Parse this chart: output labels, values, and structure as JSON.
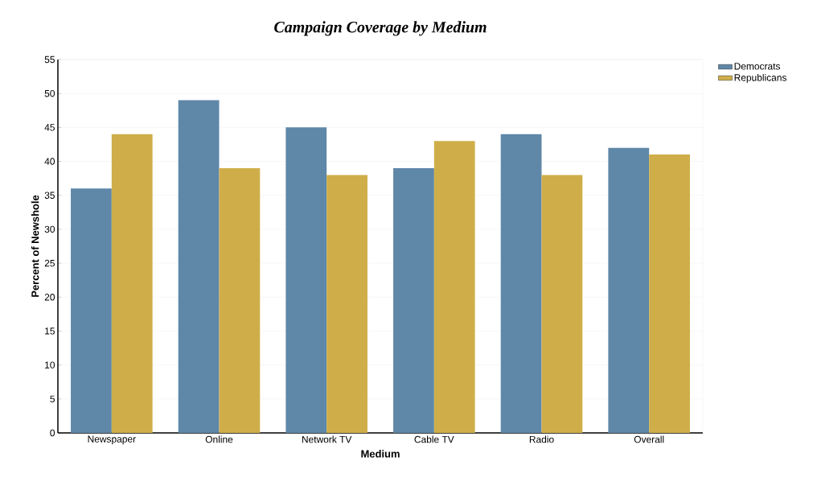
{
  "chart_data": {
    "type": "bar",
    "title": "Campaign Coverage by Medium",
    "xlabel": "Medium",
    "ylabel": "Percent of Newshole",
    "categories": [
      "Newspaper",
      "Online",
      "Network TV",
      "Cable TV",
      "Radio",
      "Overall"
    ],
    "series": [
      {
        "name": "Democrats",
        "color": "#5f87a8",
        "values": [
          36,
          49,
          45,
          39,
          44,
          42
        ]
      },
      {
        "name": "Republicans",
        "color": "#cfae4a",
        "values": [
          44,
          39,
          38,
          43,
          38,
          41
        ]
      }
    ],
    "ylim": [
      0,
      55
    ],
    "yticks": [
      0,
      5,
      10,
      15,
      20,
      25,
      30,
      35,
      40,
      45,
      50,
      55
    ],
    "grid": "y",
    "legend": "top right"
  }
}
